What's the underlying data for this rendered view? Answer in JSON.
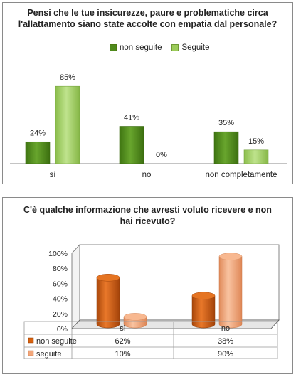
{
  "chart_data": [
    {
      "type": "bar",
      "title_line1": "Pensi che le tue insicurezze, paure e problematiche circa",
      "title_line2": "l'allattamento siano state accolte con empatia dal personale?",
      "categories": [
        "sì",
        "no",
        "non completamente"
      ],
      "series": [
        {
          "name": "non seguite",
          "values": [
            24,
            41,
            35
          ],
          "color": "#4f8a1c"
        },
        {
          "name": "Seguite",
          "values": [
            85,
            0,
            15
          ],
          "color": "#9ccc5a"
        }
      ],
      "value_labels": [
        [
          "24%",
          "41%",
          "35%"
        ],
        [
          "85%",
          "0%",
          "15%"
        ]
      ],
      "legend_position": "top",
      "ylim": [
        0,
        100
      ],
      "grid": false
    },
    {
      "type": "bar",
      "style": "3d-cylinder",
      "title_line1": "C'è qualche informazione che avresti voluto ricevere e non",
      "title_line2": "hai ricevuto?",
      "categories": [
        "sì",
        "no"
      ],
      "series": [
        {
          "name": "non seguite",
          "values": [
            62,
            38
          ],
          "color": "#d9620e"
        },
        {
          "name": "seguite",
          "values": [
            10,
            90
          ],
          "color": "#f2a67a"
        }
      ],
      "table_values": [
        [
          "62%",
          "38%"
        ],
        [
          "10%",
          "90%"
        ]
      ],
      "yticks": [
        "0%",
        "20%",
        "40%",
        "60%",
        "80%",
        "100%"
      ],
      "ylim": [
        0,
        100
      ],
      "grid": false,
      "legend_position": "data-table"
    }
  ]
}
